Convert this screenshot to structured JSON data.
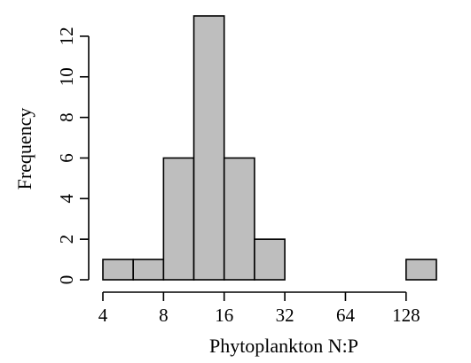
{
  "chart_data": {
    "type": "bar",
    "subtype": "histogram",
    "x_scale": "log2",
    "xlabel": "Phytoplankton N:P",
    "ylabel": "Frequency",
    "bins": [
      {
        "from": 4,
        "to": 5.657,
        "count": 1
      },
      {
        "from": 5.657,
        "to": 8,
        "count": 1
      },
      {
        "from": 8,
        "to": 11.314,
        "count": 6
      },
      {
        "from": 11.314,
        "to": 16,
        "count": 13
      },
      {
        "from": 16,
        "to": 22.627,
        "count": 6
      },
      {
        "from": 22.627,
        "to": 32,
        "count": 2
      },
      {
        "from": 32,
        "to": 45.255,
        "count": 0
      },
      {
        "from": 45.255,
        "to": 64,
        "count": 0
      },
      {
        "from": 64,
        "to": 90.51,
        "count": 0
      },
      {
        "from": 90.51,
        "to": 128,
        "count": 0
      },
      {
        "from": 128,
        "to": 181.019,
        "count": 1
      }
    ],
    "x_ticks": [
      4,
      8,
      16,
      32,
      64,
      128
    ],
    "x_tick_labels": [
      "4",
      "8",
      "16",
      "32",
      "64",
      "128"
    ],
    "y_ticks": [
      0,
      2,
      4,
      6,
      8,
      10,
      12
    ],
    "y_tick_labels": [
      "0",
      "2",
      "4",
      "6",
      "8",
      "10",
      "12"
    ],
    "xlim": [
      4,
      181.019
    ],
    "ylim": [
      0,
      13
    ],
    "bar_color": "#bebebe",
    "edge_color": "#000000",
    "grid": false,
    "legend": "none"
  }
}
